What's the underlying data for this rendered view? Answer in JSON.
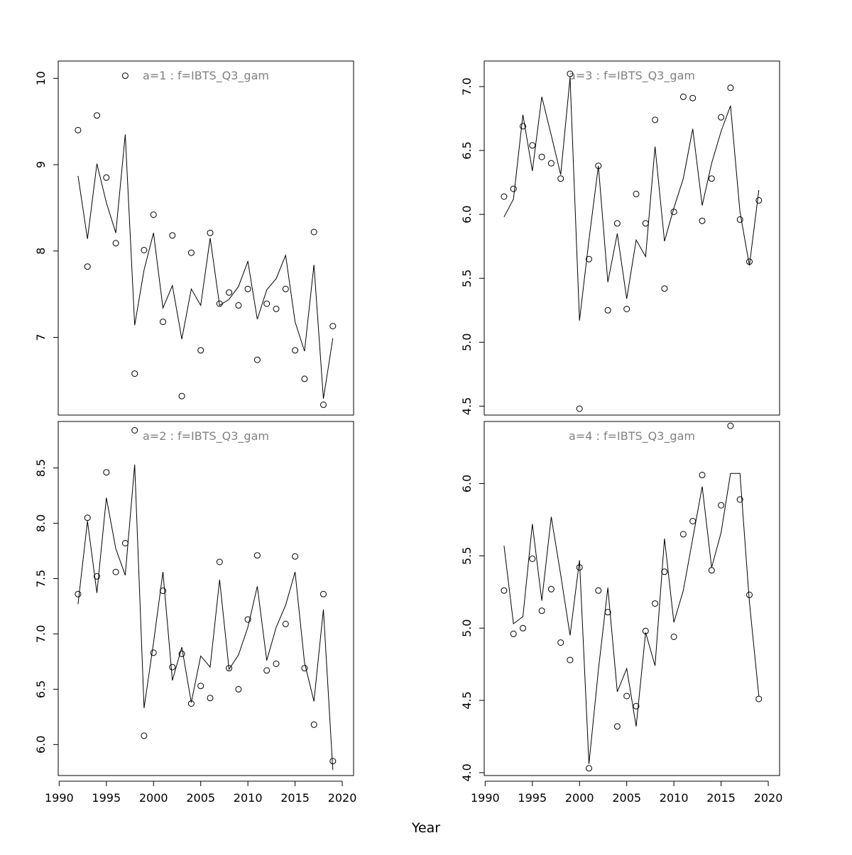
{
  "xlabel": "Year",
  "chart_data": [
    {
      "type": "line",
      "title": "a=1  :  f=IBTS_Q3_gam",
      "x": [
        1992,
        1993,
        1994,
        1995,
        1996,
        1997,
        1998,
        1999,
        2000,
        2001,
        2002,
        2003,
        2004,
        2005,
        2006,
        2007,
        2008,
        2009,
        2010,
        2011,
        2012,
        2013,
        2014,
        2015,
        2016,
        2017,
        2018,
        2019
      ],
      "series": [
        {
          "style": "points",
          "values": [
            9.4,
            7.82,
            9.57,
            8.85,
            8.09,
            10.03,
            6.58,
            8.01,
            8.42,
            7.18,
            8.18,
            6.32,
            7.98,
            6.85,
            8.21,
            7.39,
            7.52,
            7.37,
            7.56,
            6.74,
            7.39,
            7.33,
            7.56,
            6.85,
            6.52,
            8.22,
            6.22,
            7.13
          ]
        },
        {
          "style": "line",
          "values": [
            8.87,
            8.14,
            9.01,
            8.56,
            8.21,
            9.35,
            7.14,
            7.78,
            8.21,
            7.34,
            7.6,
            6.98,
            7.56,
            7.37,
            8.15,
            7.37,
            7.44,
            7.59,
            7.88,
            7.21,
            7.55,
            7.68,
            7.95,
            7.18,
            6.84,
            7.84,
            6.29,
            6.99
          ]
        }
      ],
      "ylim": [
        6.1,
        10.2
      ],
      "yticks": [
        7,
        8,
        9,
        10
      ],
      "xticks": []
    },
    {
      "type": "line",
      "title": "a=3  :  f=IBTS_Q3_gam",
      "x": [
        1992,
        1993,
        1994,
        1995,
        1996,
        1997,
        1998,
        1999,
        2000,
        2001,
        2002,
        2003,
        2004,
        2005,
        2006,
        2007,
        2008,
        2009,
        2010,
        2011,
        2012,
        2013,
        2014,
        2015,
        2016,
        2017,
        2018,
        2019
      ],
      "series": [
        {
          "style": "points",
          "values": [
            6.14,
            6.2,
            6.69,
            6.54,
            6.45,
            6.4,
            6.28,
            7.1,
            4.48,
            5.65,
            6.38,
            5.25,
            5.93,
            5.26,
            6.16,
            5.93,
            6.74,
            5.42,
            6.02,
            6.92,
            6.91,
            5.95,
            6.28,
            6.76,
            6.99,
            5.96,
            5.63,
            6.11
          ]
        },
        {
          "style": "line",
          "values": [
            5.98,
            6.12,
            6.78,
            6.34,
            6.92,
            6.62,
            6.31,
            7.07,
            5.17,
            5.8,
            6.38,
            5.47,
            5.85,
            5.34,
            5.8,
            5.67,
            6.53,
            5.79,
            6.05,
            6.28,
            6.67,
            6.07,
            6.4,
            6.65,
            6.85,
            6.02,
            5.6,
            6.19
          ]
        }
      ],
      "ylim": [
        4.43,
        7.2
      ],
      "yticks": [
        4.5,
        5.0,
        5.5,
        6.0,
        6.5,
        7.0
      ],
      "xticks": []
    },
    {
      "type": "line",
      "title": "a=2  :  f=IBTS_Q3_gam",
      "x": [
        1992,
        1993,
        1994,
        1995,
        1996,
        1997,
        1998,
        1999,
        2000,
        2001,
        2002,
        2003,
        2004,
        2005,
        2006,
        2007,
        2008,
        2009,
        2010,
        2011,
        2012,
        2013,
        2014,
        2015,
        2016,
        2017,
        2018,
        2019
      ],
      "series": [
        {
          "style": "points",
          "values": [
            7.36,
            8.05,
            7.52,
            8.46,
            7.56,
            7.82,
            8.84,
            6.08,
            6.83,
            7.39,
            6.7,
            6.82,
            6.37,
            6.53,
            6.42,
            7.65,
            6.69,
            6.5,
            7.13,
            7.71,
            6.67,
            6.73,
            7.09,
            7.7,
            6.69,
            6.18,
            7.36,
            5.85
          ]
        },
        {
          "style": "line",
          "values": [
            7.27,
            8.02,
            7.37,
            8.23,
            7.77,
            7.53,
            8.53,
            6.33,
            6.92,
            7.56,
            6.58,
            6.88,
            6.38,
            6.8,
            6.7,
            7.49,
            6.68,
            6.81,
            7.06,
            7.43,
            6.76,
            7.06,
            7.26,
            7.56,
            6.74,
            6.39,
            7.22,
            5.77
          ]
        }
      ],
      "ylim": [
        5.72,
        8.92
      ],
      "yticks": [
        6.0,
        6.5,
        7.0,
        7.5,
        8.0,
        8.5
      ],
      "xticks": [
        1990,
        1995,
        2000,
        2005,
        2010,
        2015,
        2020
      ]
    },
    {
      "type": "line",
      "title": "a=4  :  f=IBTS_Q3_gam",
      "x": [
        1992,
        1993,
        1994,
        1995,
        1996,
        1997,
        1998,
        1999,
        2000,
        2001,
        2002,
        2003,
        2004,
        2005,
        2006,
        2007,
        2008,
        2009,
        2010,
        2011,
        2012,
        2013,
        2014,
        2015,
        2016,
        2017,
        2018,
        2019
      ],
      "series": [
        {
          "style": "points",
          "values": [
            5.26,
            4.96,
            5.0,
            5.48,
            5.12,
            5.27,
            4.9,
            4.78,
            5.42,
            4.03,
            5.26,
            5.11,
            4.32,
            4.53,
            4.46,
            4.98,
            5.17,
            5.39,
            4.94,
            5.65,
            5.74,
            6.06,
            5.4,
            5.85,
            6.4,
            5.89,
            5.23,
            4.51
          ]
        },
        {
          "style": "line",
          "values": [
            5.57,
            5.03,
            5.08,
            5.72,
            5.19,
            5.77,
            5.37,
            4.95,
            5.47,
            4.06,
            4.71,
            5.28,
            4.56,
            4.72,
            4.32,
            4.97,
            4.74,
            5.62,
            5.04,
            5.26,
            5.62,
            5.98,
            5.42,
            5.66,
            6.07,
            6.07,
            5.18,
            4.53
          ]
        }
      ],
      "ylim": [
        3.98,
        6.43
      ],
      "yticks": [
        4.0,
        4.5,
        5.0,
        5.5,
        6.0
      ],
      "xticks": [
        1990,
        1995,
        2000,
        2005,
        2010,
        2015,
        2020
      ]
    }
  ]
}
